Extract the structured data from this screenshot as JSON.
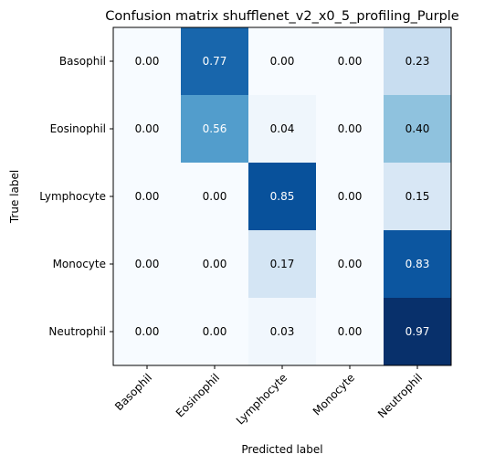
{
  "chart_data": {
    "type": "heatmap",
    "title": "Confusion matrix shufflenet_v2_x0_5_profiling_Purple",
    "xlabel": "Predicted label",
    "ylabel": "True label",
    "x_categories": [
      "Basophil",
      "Eosinophil",
      "Lymphocyte",
      "Monocyte",
      "Neutrophil"
    ],
    "y_categories": [
      "Basophil",
      "Eosinophil",
      "Lymphocyte",
      "Monocyte",
      "Neutrophil"
    ],
    "values": [
      [
        0.0,
        0.77,
        0.0,
        0.0,
        0.23
      ],
      [
        0.0,
        0.56,
        0.04,
        0.0,
        0.4
      ],
      [
        0.0,
        0.0,
        0.85,
        0.0,
        0.15
      ],
      [
        0.0,
        0.0,
        0.17,
        0.0,
        0.83
      ],
      [
        0.0,
        0.0,
        0.03,
        0.0,
        0.97
      ]
    ],
    "colormap": "Blues",
    "vmin": 0,
    "vmax": 0.97,
    "text_threshold": 0.485,
    "text_color_dark": "#000000",
    "text_color_light": "#ffffff",
    "x_tick_rotation_deg": 45
  }
}
